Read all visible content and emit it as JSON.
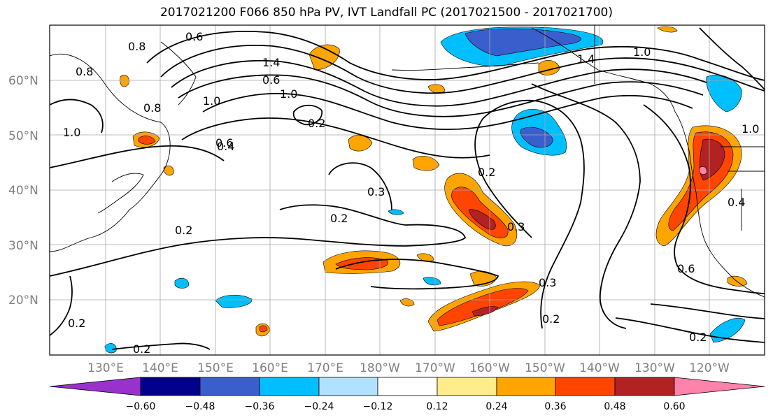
{
  "title": "2017021200 F066 850 hPa PV, IVT Landfall PC (2017021500 - 2017021700)",
  "lat_labels": [
    "20°N",
    "30°N",
    "40°N",
    "50°N",
    "60°N"
  ],
  "lon_labels": [
    "130°E",
    "140°E",
    "150°E",
    "160°E",
    "170°E",
    "180°W",
    "170°W",
    "160°W",
    "150°W",
    "140°W",
    "130°W",
    "120°W"
  ],
  "contour_labels": [
    "0.8",
    "0.8",
    "0.6",
    "1.0",
    "0.8",
    "0.6",
    "1.4",
    "1.0",
    "1.0",
    "0.6",
    "0.2",
    "0.4",
    "0.2",
    "0.3",
    "0.2",
    "0.2",
    "0.3",
    "0.3",
    "0.2",
    "0.6",
    "0.4",
    "0.2",
    "0.2",
    "0.2",
    "1.0",
    "1.4",
    "1.0"
  ],
  "colorbar": {
    "tick_labels": [
      "−0.60",
      "−0.48",
      "−0.36",
      "−0.24",
      "−0.12",
      "0.12",
      "0.24",
      "0.36",
      "0.48",
      "0.60"
    ],
    "colors": [
      "#9932cc",
      "#00008b",
      "#3a5fcd",
      "#00bfff",
      "#b0e2ff",
      "#ffffff",
      "#ffec8b",
      "#ffa500",
      "#ff4500",
      "#b22222",
      "#ff82ab"
    ]
  },
  "shading_colors": {
    "neg_low": "#b0e2ff",
    "neg_mid": "#00bfff",
    "neg_high": "#3a5fcd",
    "pos_low": "#ffec8b",
    "pos_mid": "#ffa500",
    "pos_high": "#ff4500",
    "pos_max": "#b22222",
    "pos_extreme": "#ff82ab"
  }
}
